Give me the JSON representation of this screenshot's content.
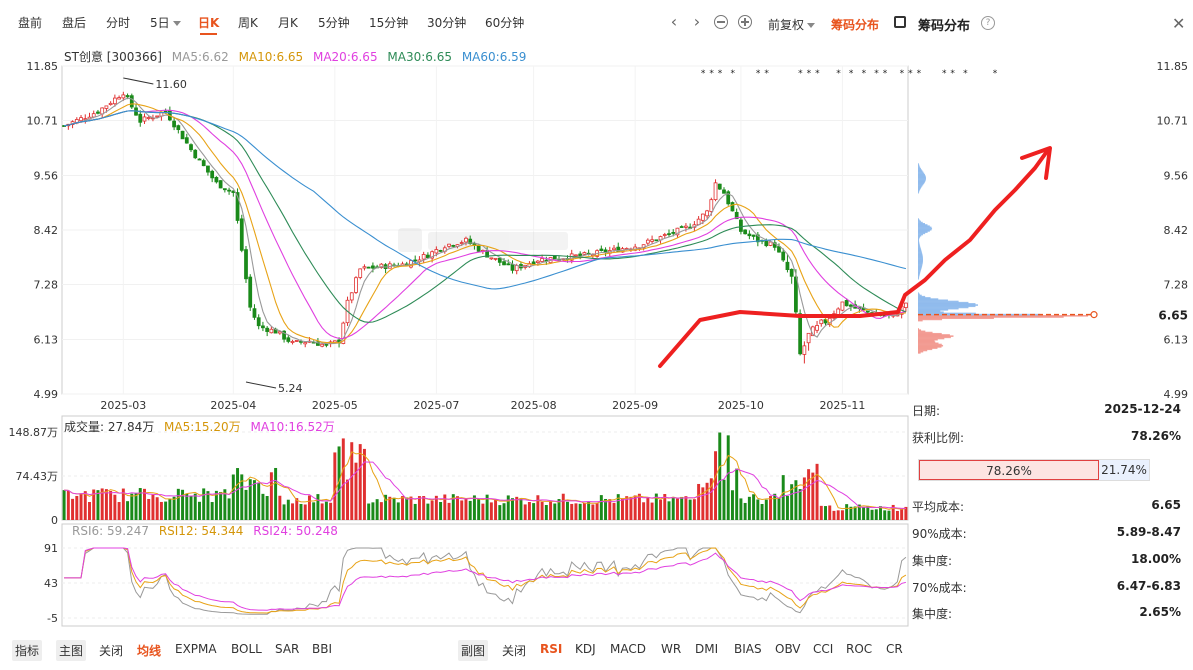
{
  "period_tabs": [
    "盘前",
    "盘后",
    "分时",
    "5日",
    "日K",
    "周K",
    "月K",
    "5分钟",
    "15分钟",
    "30分钟",
    "60分钟"
  ],
  "active_period": "日K",
  "adjust_label": "前复权",
  "chip_button_label": "筹码分布",
  "panel_title": "筹码分布",
  "stock_label": "ST创意 [300366]",
  "ma_legend": [
    {
      "label": "MA5:6.62",
      "color": "#999999"
    },
    {
      "label": "MA10:6.65",
      "color": "#e8a317"
    },
    {
      "label": "MA20:6.65",
      "color": "#e040e0"
    },
    {
      "label": "MA30:6.65",
      "color": "#2e8b57"
    },
    {
      "label": "MA60:6.59",
      "color": "#3a8fd0"
    }
  ],
  "volume_legend": [
    {
      "label": "成交量: 27.84万",
      "color": "#333333"
    },
    {
      "label": "MA5:15.20万",
      "color": "#e8a317"
    },
    {
      "label": "MA10:16.52万",
      "color": "#e040e0"
    }
  ],
  "rsi_legend": [
    {
      "label": "RSI6: 59.247",
      "color": "#999999"
    },
    {
      "label": "RSI12: 54.344",
      "color": "#e8a317"
    },
    {
      "label": "RSI24: 50.248",
      "color": "#e040e0"
    }
  ],
  "chart_data": {
    "type": "candlestick",
    "price_ticks": [
      "11.85",
      "10.71",
      "9.56",
      "8.42",
      "7.28",
      "6.13",
      "4.99"
    ],
    "price_range": [
      4.99,
      11.85
    ],
    "x_ticks": [
      "2025-03",
      "2025-04",
      "2025-05",
      "2025-07",
      "2025-08",
      "2025-09",
      "2025-10",
      "2025-11"
    ],
    "annotations": {
      "high": "11.60",
      "low": "5.24"
    },
    "current_price": "6.65",
    "volume_ticks": [
      "148.87万",
      "74.43万",
      "0"
    ],
    "volume_max": 148.87,
    "rsi_ticks": [
      "91",
      "43",
      "-5"
    ],
    "rsi_range": [
      -5,
      91
    ],
    "colors": {
      "up": "#e03030",
      "down": "#1a8a1a",
      "ma5": "#999999",
      "ma10": "#e8a317",
      "ma20": "#e040e0",
      "ma30": "#2e8b57",
      "ma60": "#3a8fd0"
    }
  },
  "chip_info": {
    "date_label": "日期:",
    "date_value": "2025-12-24",
    "profit_label": "获利比例:",
    "profit_value": "78.26%",
    "profit_bar_left": "78.26%",
    "profit_bar_right": "21.74%",
    "profit_fraction": 0.7826,
    "avg_label": "平均成本:",
    "avg_value": "6.65",
    "c90_label": "90%成本:",
    "c90_value": "5.89-8.47",
    "conc1_label": "集中度:",
    "conc1_value": "18.00%",
    "c70_label": "70%成本:",
    "c70_value": "6.47-6.83",
    "conc2_label": "集中度:",
    "conc2_value": "2.65%"
  },
  "bottom_left_tabs": [
    "指标",
    "主图",
    "关闭",
    "均线",
    "EXPMA",
    "BOLL",
    "SAR",
    "BBI"
  ],
  "bottom_right_tabs": [
    "副图",
    "关闭",
    "RSI",
    "KDJ",
    "MACD",
    "WR",
    "DMI",
    "BIAS",
    "OBV",
    "CCI",
    "ROC",
    "CR"
  ]
}
